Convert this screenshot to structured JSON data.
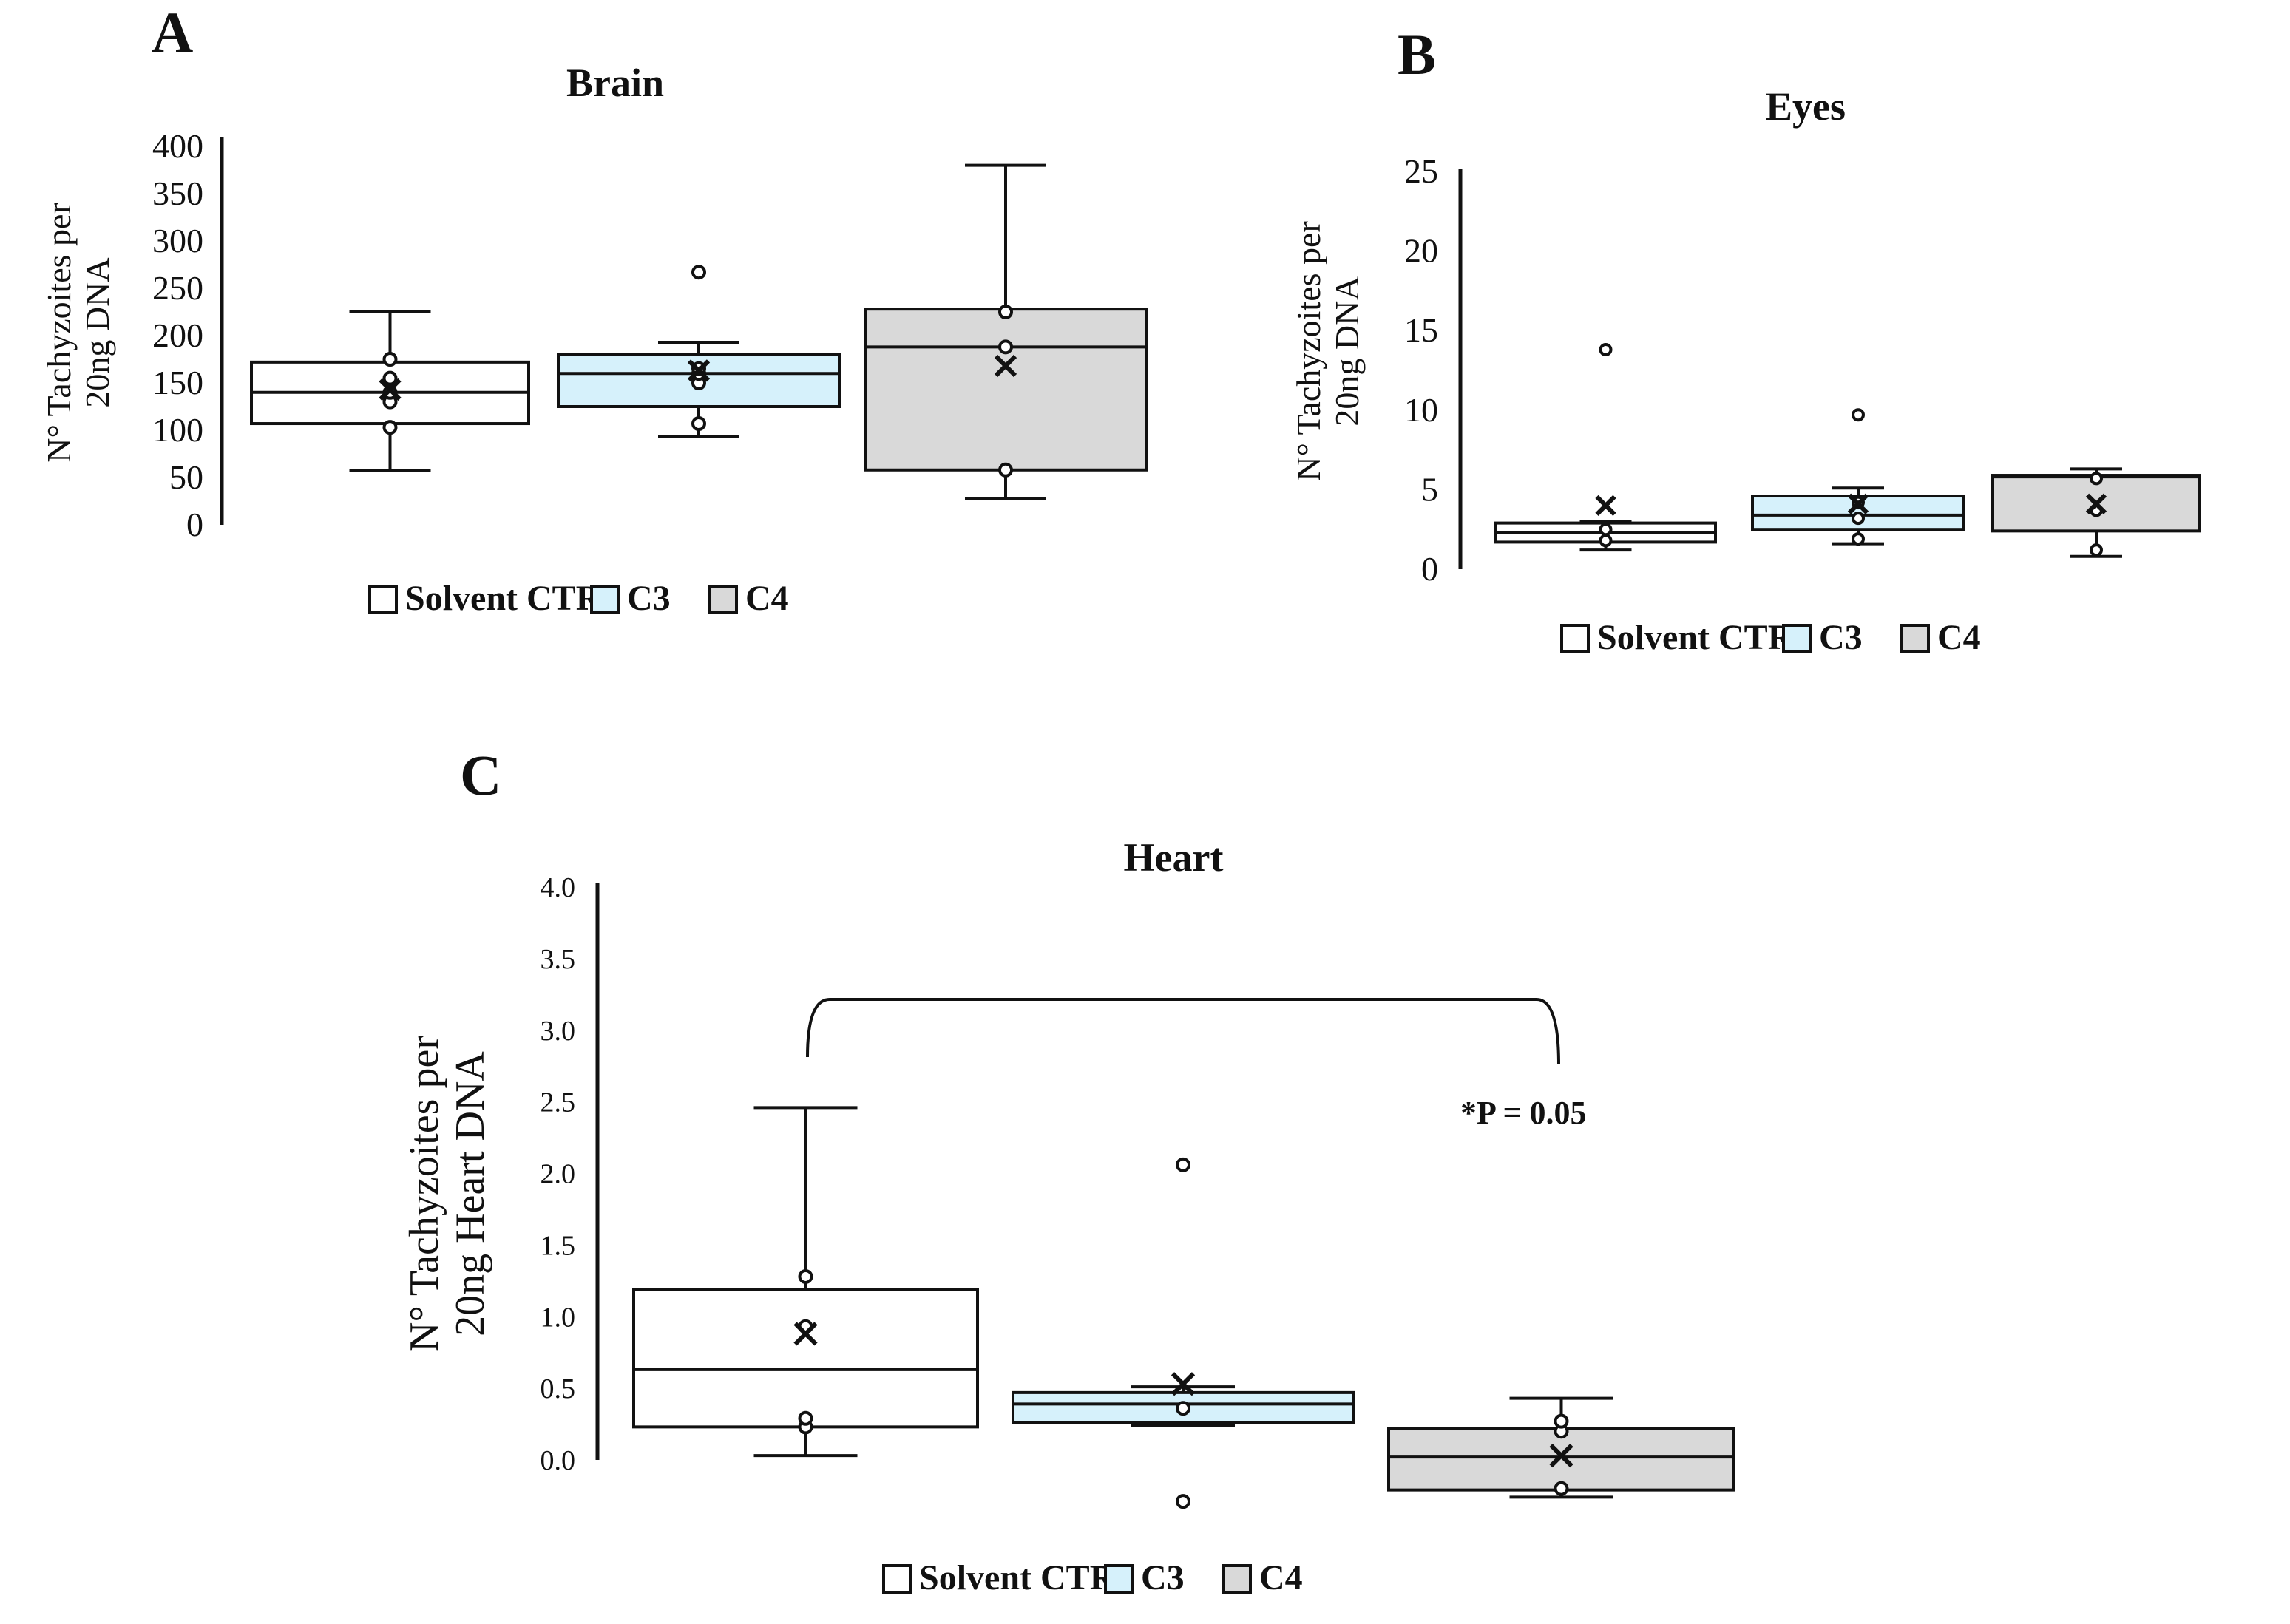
{
  "colors": {
    "solvent_ctr": "#ffffff",
    "c3": "#d6f1fb",
    "c4": "#d9d9d9",
    "stroke": "#111111"
  },
  "chart_data": [
    {
      "panel": "A",
      "type": "box",
      "title": "Brain",
      "ylabel_lines": [
        "N° Tachyzoites per",
        "20ng DNA"
      ],
      "ylim": [
        0,
        400
      ],
      "yticks": [
        0,
        50,
        100,
        150,
        200,
        250,
        300,
        350,
        400
      ],
      "ytick_labels": [
        "0",
        "50",
        "100",
        "150",
        "200",
        "250",
        "300",
        "350",
        "400"
      ],
      "legend": [
        "Solvent CTR",
        "C3",
        "C4"
      ],
      "series": [
        {
          "name": "Solvent CTR",
          "color": "#ffffff",
          "min": 57,
          "q1": 107,
          "median": 140,
          "q3": 172,
          "max": 225,
          "mean": 143,
          "points": [
            103,
            130,
            140,
            155,
            175
          ],
          "outliers": []
        },
        {
          "name": "C3",
          "color": "#d6f1fb",
          "min": 93,
          "q1": 125,
          "median": 160,
          "q3": 180,
          "max": 193,
          "mean": 163,
          "points": [
            107,
            150,
            160,
            165
          ],
          "outliers": [
            267
          ]
        },
        {
          "name": "C4",
          "color": "#d9d9d9",
          "min": 28,
          "q1": 58,
          "median": 188,
          "q3": 228,
          "max": 380,
          "mean": 168,
          "points": [
            58,
            188,
            225
          ],
          "outliers": []
        }
      ]
    },
    {
      "panel": "B",
      "type": "box",
      "title": "Eyes",
      "ylabel_lines": [
        "N° Tachyzoites per",
        "20ng DNA"
      ],
      "ylim": [
        0,
        25
      ],
      "yticks": [
        0,
        5,
        10,
        15,
        20,
        25
      ],
      "ytick_labels": [
        "0",
        "5",
        "10",
        "15",
        "20",
        "25"
      ],
      "legend": [
        "Solvent CTR",
        "C3",
        "C4"
      ],
      "series": [
        {
          "name": "Solvent CTR",
          "color": "#ffffff",
          "min": 1.2,
          "q1": 1.7,
          "median": 2.3,
          "q3": 2.9,
          "max": 3.0,
          "mean": 4.0,
          "points": [
            1.8,
            2.5
          ],
          "outliers": [
            13.8
          ]
        },
        {
          "name": "C3",
          "color": "#d6f1fb",
          "min": 1.6,
          "q1": 2.5,
          "median": 3.4,
          "q3": 4.6,
          "max": 5.1,
          "mean": 4.1,
          "points": [
            1.9,
            3.2,
            4.2
          ],
          "outliers": [
            9.7
          ]
        },
        {
          "name": "C4",
          "color": "#d9d9d9",
          "min": 0.8,
          "q1": 2.4,
          "median": 5.8,
          "q3": 5.9,
          "max": 6.3,
          "mean": 4.1,
          "points": [
            1.2,
            3.7,
            5.7
          ],
          "outliers": []
        }
      ]
    },
    {
      "panel": "C",
      "type": "box",
      "title": "Heart",
      "ylabel_lines": [
        "N° Tachyzoites per",
        "20ng Heart DNA"
      ],
      "ylim": [
        0,
        4
      ],
      "yticks": [
        0,
        0.5,
        1,
        1.5,
        2,
        2.5,
        3,
        3.5,
        4
      ],
      "ytick_labels": [
        "0.0",
        "0.5",
        "1.0",
        "1.5",
        "2.0",
        "2.5",
        "3.0",
        "3.5",
        "4.0"
      ],
      "legend": [
        "Solvent CTR",
        "C3",
        "C4"
      ],
      "annotation": "*P = 0.05",
      "series": [
        {
          "name": "Solvent CTR",
          "color": "#ffffff",
          "min": 0.02,
          "q1": 0.22,
          "median": 0.62,
          "q3": 1.18,
          "max": 2.45,
          "mean": 0.87,
          "points": [
            0.22,
            0.28,
            0.92,
            1.27
          ],
          "outliers": []
        },
        {
          "name": "C3",
          "color": "#d6f1fb",
          "min": 0.23,
          "q1": 0.25,
          "median": 0.38,
          "q3": 0.46,
          "max": 0.5,
          "mean": 0.52,
          "points": [
            0.35
          ],
          "outliers": [
            2.05,
            -0.3
          ]
        },
        {
          "name": "C4",
          "color": "#d9d9d9",
          "min": -0.27,
          "q1": -0.22,
          "median": 0.01,
          "q3": 0.21,
          "max": 0.42,
          "mean": 0.02,
          "points": [
            -0.21,
            0.19,
            0.26
          ],
          "outliers": []
        }
      ]
    }
  ]
}
